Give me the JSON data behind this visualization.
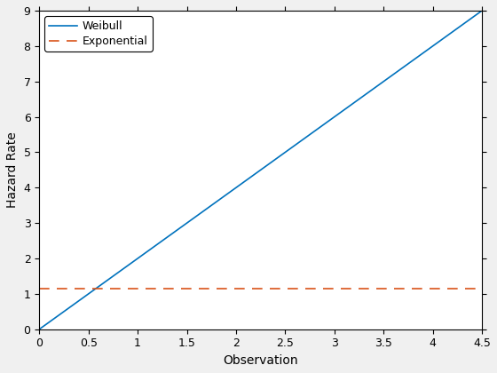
{
  "title": "",
  "xlabel": "Observation",
  "ylabel": "Hazard Rate",
  "xlim": [
    0,
    4.5
  ],
  "ylim": [
    0,
    9
  ],
  "xticks": [
    0,
    0.5,
    1,
    1.5,
    2,
    2.5,
    3,
    3.5,
    4,
    4.5
  ],
  "yticks": [
    0,
    1,
    2,
    3,
    4,
    5,
    6,
    7,
    8,
    9
  ],
  "weibull_color": "#0072BD",
  "exponential_color": "#D95319",
  "weibull_label": "Weibull",
  "exponential_label": "Exponential",
  "exponential_y": 1.15,
  "weibull_slope": 2.0,
  "background_color": "#ffffff",
  "outer_background": "#f0f0f0",
  "legend_loc": "upper left",
  "legend_fontsize": 9,
  "axis_fontsize": 10,
  "tick_fontsize": 9
}
